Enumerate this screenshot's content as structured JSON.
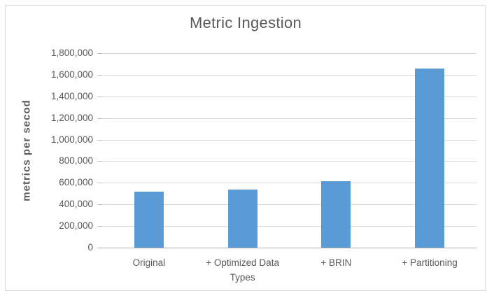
{
  "window": {
    "background": "#ffffff",
    "border_color": "#d9d9d9"
  },
  "chart_data": {
    "type": "bar",
    "title": "Metric Ingestion",
    "categories": [
      "Original",
      "+ Optimized Data Types",
      "+ BRIN",
      "+ Partitioning"
    ],
    "values": [
      520000,
      535000,
      615000,
      1655000
    ],
    "xlabel": "",
    "ylabel": "metrics per secod",
    "ylim": [
      0,
      1800000
    ],
    "ytick_step": 200000,
    "ytick_labels": [
      "0",
      "200,000",
      "400,000",
      "600,000",
      "800,000",
      "1,000,000",
      "1,200,000",
      "1,400,000",
      "1,600,000",
      "1,800,000"
    ],
    "grid": true,
    "legend": "none",
    "bar_color": "#5b9bd5",
    "gridline_color": "#d9d9d9",
    "axis_line_color": "#b0b0b0",
    "tick_color": "#bfbfbf",
    "text_color": "#595959"
  }
}
